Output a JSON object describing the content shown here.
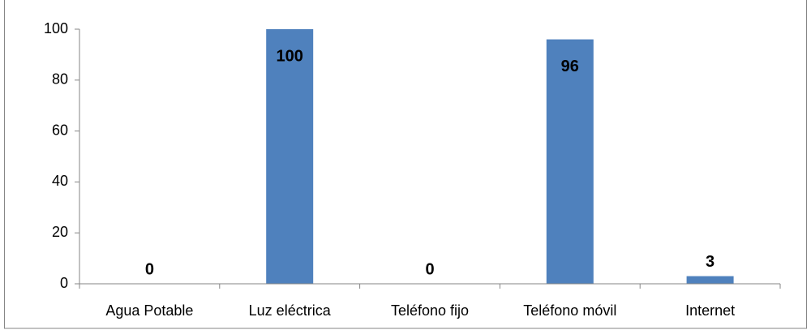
{
  "chart_data": {
    "type": "bar",
    "categories": [
      "Agua Potable",
      "Luz eléctrica",
      "Teléfono fijo",
      "Teléfono móvil",
      "Internet"
    ],
    "values": [
      0,
      100,
      0,
      96,
      3
    ],
    "color": "#4f81bd",
    "ylim": [
      0,
      100
    ],
    "yticks": [
      0,
      20,
      40,
      60,
      80,
      100
    ],
    "grid": false
  }
}
